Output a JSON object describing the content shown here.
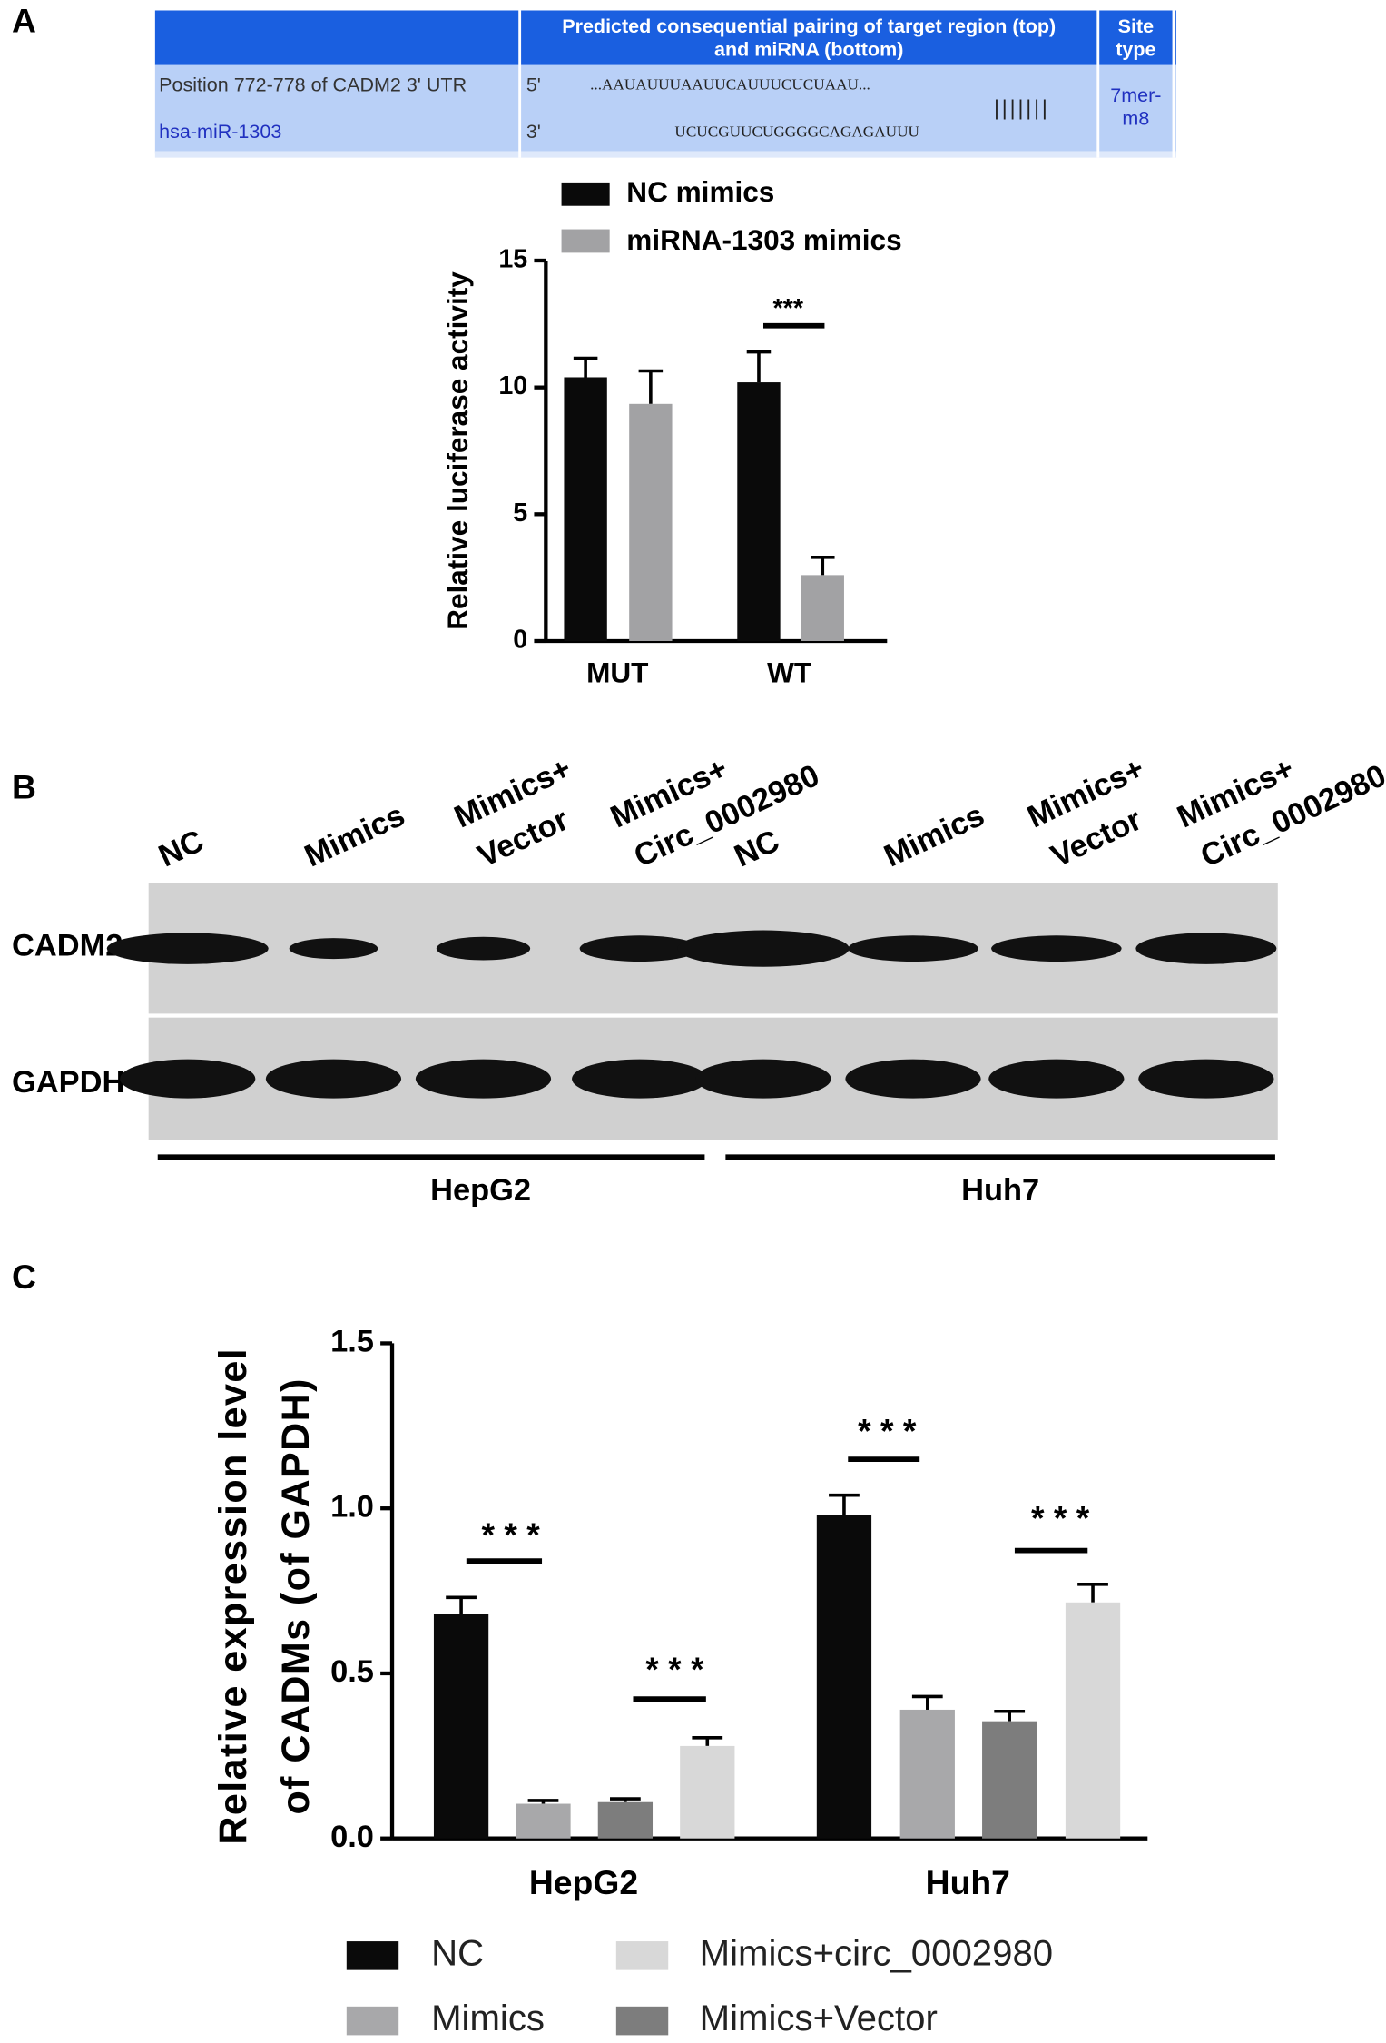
{
  "panels": [
    "A",
    "B",
    "C"
  ],
  "table": {
    "header": [
      "Predicted consequential pairing of target region (top)",
      "and miRNA (bottom)",
      "Site",
      "type"
    ],
    "rows": [
      [
        "Position 772-778 of CADM2 3' UTR",
        "5'",
        "...AAUAUUUAAUUCAUUUCUCUAAU...",
        "|||||||",
        "7mer-",
        "m8"
      ],
      [
        "hsa-miR-1303",
        "3'",
        "UCUCGUUCUGGGGCAGAGAUUU"
      ]
    ]
  },
  "blot": {
    "lanes": [
      "NC",
      "Mimics",
      "Mimics+",
      "Vector",
      "Mimics+",
      "Circ_0002980",
      "NC",
      "Mimics",
      "Mimics+",
      "Vector",
      "Mimics+",
      "Circ_0002980"
    ],
    "rows": [
      "CADM2",
      "GAPDH"
    ],
    "groups": [
      "HepG2",
      "Huh7"
    ]
  },
  "chart_data": [
    {
      "type": "bar",
      "categories": [
        "MUT",
        "WT"
      ],
      "y_label": "Relative luciferase activity",
      "ylim": [
        0,
        15
      ],
      "yticks": [
        0,
        5,
        10,
        15
      ],
      "series": [
        {
          "name": "NC mimics",
          "color": "#0a0a0a",
          "values": [
            10.4,
            10.2
          ],
          "errors": [
            0.75,
            1.2
          ]
        },
        {
          "name": "miRNA-1303 mimics",
          "color": "#a2a2a4",
          "values": [
            9.35,
            2.6
          ],
          "errors": [
            1.3,
            0.7
          ]
        }
      ],
      "annotations": [
        "***"
      ]
    },
    {
      "type": "bar",
      "categories": [
        "HepG2",
        "Huh7"
      ],
      "y_label": [
        "Relative expression level",
        "of CADMs (of GAPDH)"
      ],
      "ylim": [
        0,
        1.5
      ],
      "yticks": [
        {
          "value": 0,
          "label": "0.0"
        },
        0.5,
        {
          "value": 1,
          "label": "1.0"
        },
        1.5
      ],
      "series": [
        {
          "name": "NC",
          "color": "#0a0a0a",
          "values": [
            0.68,
            0.98
          ],
          "errors": [
            0.05,
            0.06
          ]
        },
        {
          "name": "Mimics",
          "color": "#a8a8aa",
          "values": [
            0.105,
            0.39
          ],
          "errors": [
            0.01,
            0.04
          ]
        },
        {
          "name": "Mimics+Vector",
          "color": "#7d7d7d",
          "values": [
            0.11,
            0.355
          ],
          "errors": [
            0.01,
            0.03
          ]
        },
        {
          "name": "Mimics+circ_0002980",
          "color": "#d8d8d8",
          "values": [
            0.28,
            0.715
          ],
          "errors": [
            0.025,
            0.055
          ]
        }
      ],
      "annotations": [
        "* * *",
        "* * *",
        "* * *",
        "* * *"
      ]
    }
  ]
}
